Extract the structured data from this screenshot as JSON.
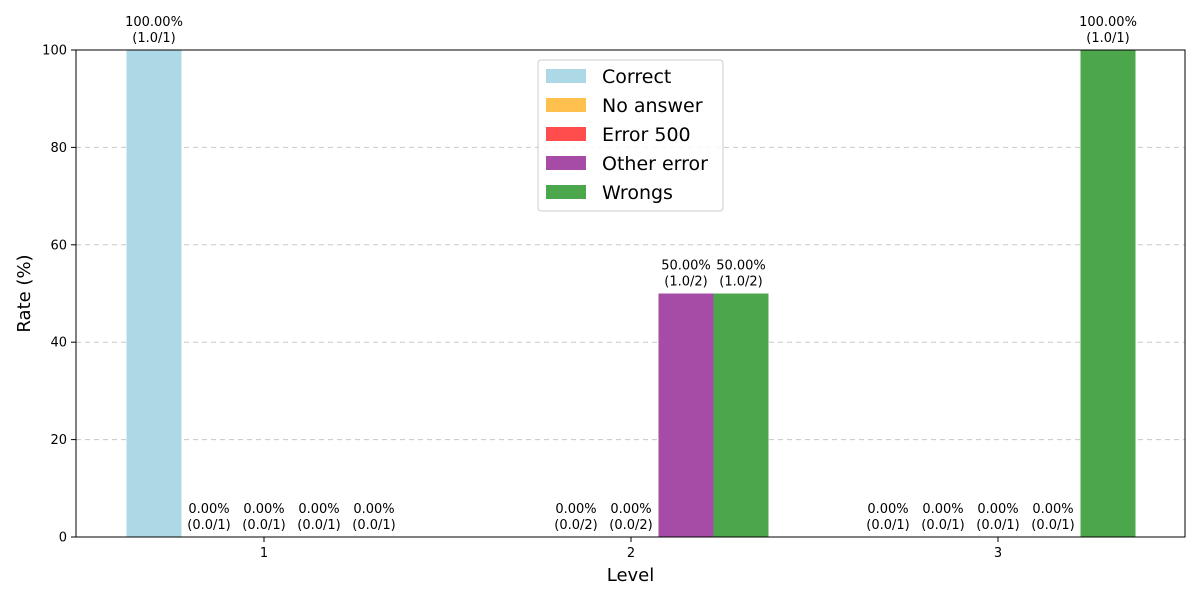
{
  "chart_data": {
    "type": "bar",
    "xlabel": "Level",
    "ylabel": "Rate (%)",
    "ylim": [
      0,
      100
    ],
    "yticks": [
      0,
      20,
      40,
      60,
      80,
      100
    ],
    "grid": "y-dashed",
    "legend_position": "top-center",
    "categories": [
      "1",
      "2",
      "3"
    ],
    "series": [
      {
        "name": "Correct",
        "color": "#add8e6",
        "values": [
          100,
          null,
          0
        ],
        "labels": [
          [
            "100.00%",
            "(1.0/1)"
          ],
          null,
          [
            "0.00%",
            "(0.0/1)"
          ]
        ]
      },
      {
        "name": "No answer",
        "color": "#ffc04d",
        "values": [
          0,
          0,
          0
        ],
        "labels": [
          [
            "0.00%",
            "(0.0/1)"
          ],
          [
            "0.00%",
            "(0.0/2)"
          ],
          [
            "0.00%",
            "(0.0/1)"
          ]
        ]
      },
      {
        "name": "Error 500",
        "color": "#ff4d4d",
        "values": [
          0,
          0,
          0
        ],
        "labels": [
          [
            "0.00%",
            "(0.0/1)"
          ],
          [
            "0.00%",
            "(0.0/2)"
          ],
          [
            "0.00%",
            "(0.0/1)"
          ]
        ]
      },
      {
        "name": "Other error",
        "color": "#a64ca6",
        "values": [
          0,
          50,
          0
        ],
        "labels": [
          [
            "0.00%",
            "(0.0/1)"
          ],
          [
            "50.00%",
            "(1.0/2)"
          ],
          [
            "0.00%",
            "(0.0/1)"
          ]
        ]
      },
      {
        "name": "Wrongs",
        "color": "#4ca64c",
        "values": [
          0,
          50,
          100
        ],
        "labels": [
          [
            "0.00%",
            "(0.0/1)"
          ],
          [
            "50.00%",
            "(1.0/2)"
          ],
          [
            "100.00%",
            "(1.0/1)"
          ]
        ]
      }
    ]
  }
}
